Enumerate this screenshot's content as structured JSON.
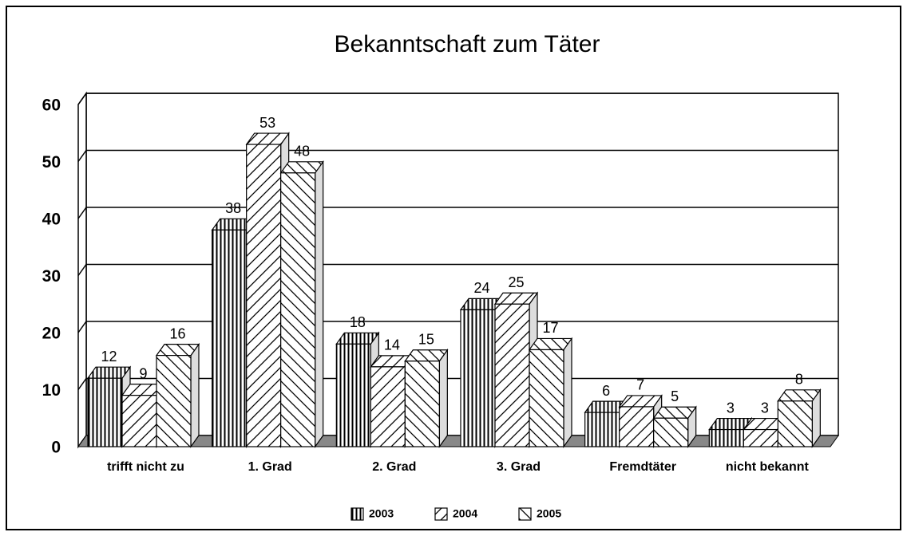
{
  "chart_data": {
    "type": "bar",
    "title": "Bekanntschaft zum Täter",
    "categories": [
      "trifft nicht zu",
      "1. Grad",
      "2. Grad",
      "3. Grad",
      "Fremdtäter",
      "nicht bekannt"
    ],
    "series": [
      {
        "name": "2003",
        "color": "#000000",
        "pattern": "vertical",
        "values": [
          12,
          38,
          18,
          24,
          6,
          3
        ]
      },
      {
        "name": "2004",
        "color": "#000000",
        "pattern": "forward-diagonal",
        "values": [
          9,
          53,
          14,
          25,
          7,
          3
        ]
      },
      {
        "name": "2005",
        "color": "#000000",
        "pattern": "back-diagonal",
        "values": [
          16,
          48,
          15,
          17,
          5,
          8
        ]
      }
    ],
    "ylim": [
      0,
      60
    ],
    "yticks": [
      0,
      10,
      20,
      30,
      40,
      50,
      60
    ],
    "grid": true,
    "legend": "bottom"
  }
}
